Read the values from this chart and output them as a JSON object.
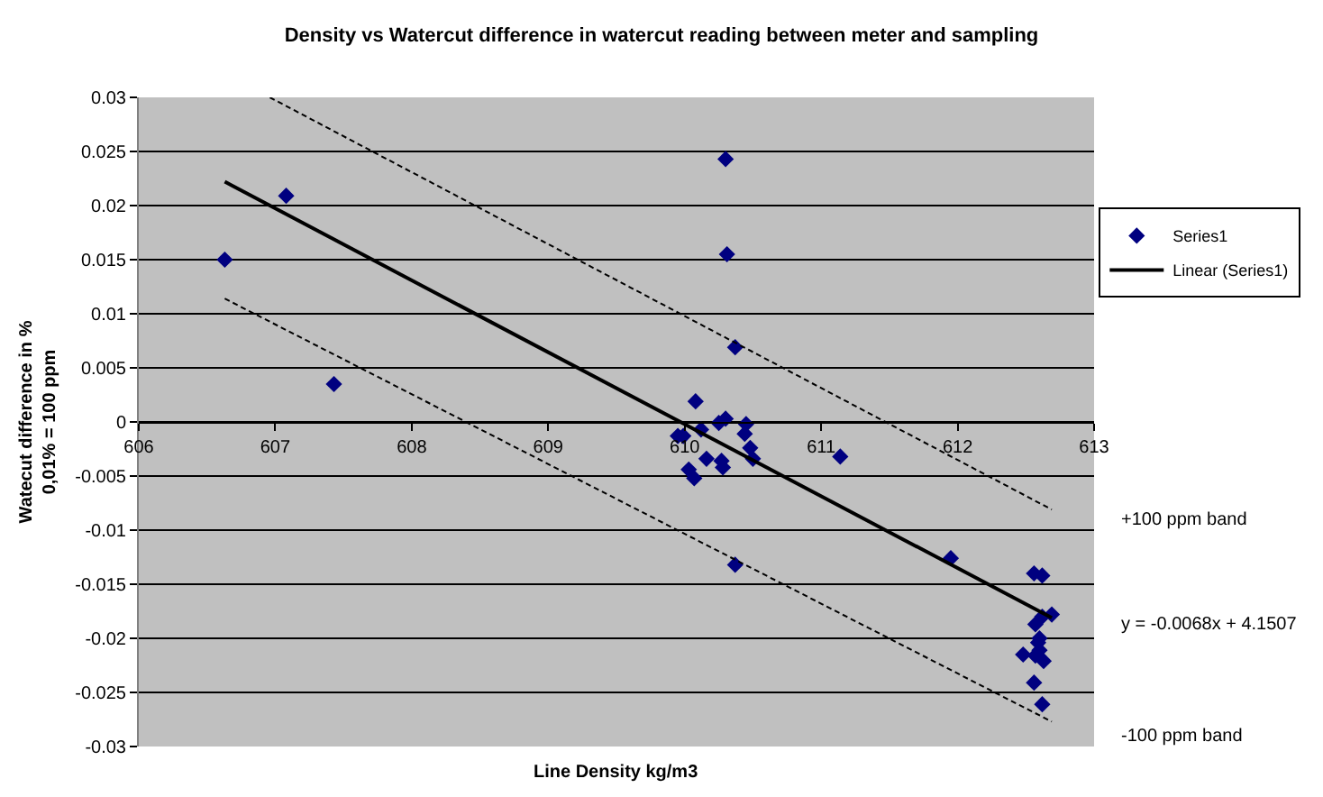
{
  "chart_data": {
    "type": "scatter",
    "title": "Density vs Watercut difference in watercut reading between meter and sampling",
    "xlabel": "Line Density kg/m3",
    "ylabel": "Watecut difference in %\n0,01% = 100 ppm",
    "xlim": [
      606,
      613
    ],
    "xticks": [
      606,
      607,
      608,
      609,
      610,
      611,
      612,
      613
    ],
    "ylim": [
      -0.03,
      0.03
    ],
    "yticks": [
      -0.03,
      -0.025,
      -0.02,
      -0.015,
      -0.01,
      -0.005,
      0,
      0.005,
      0.01,
      0.015,
      0.02,
      0.025,
      0.03
    ],
    "grid": "y",
    "legend": "right",
    "annotations": [
      "+100 ppm band",
      "y = -0.0068x + 4.1507",
      "-100 ppm band"
    ],
    "series": [
      {
        "name": "Series1",
        "color": "#000080",
        "marker": "diamond",
        "x": [
          606.63,
          607.08,
          607.43,
          610.3,
          610.31,
          610.37,
          610.08,
          609.95,
          609.99,
          610.12,
          610.25,
          610.3,
          610.45,
          610.44,
          610.48,
          610.5,
          610.16,
          610.27,
          610.28,
          610.03,
          610.07,
          611.14,
          610.37,
          611.95,
          612.56,
          612.62,
          612.69,
          612.62,
          612.57,
          612.6,
          612.59,
          612.6,
          612.48,
          612.57,
          612.63,
          612.56,
          612.62
        ],
        "values": [
          0.015,
          0.0209,
          0.0035,
          0.0243,
          0.0155,
          0.0069,
          0.0019,
          -0.0013,
          -0.0013,
          -0.0007,
          -0.0001,
          0.0003,
          -0.0002,
          -0.0011,
          -0.0024,
          -0.0034,
          -0.0034,
          -0.0036,
          -0.0042,
          -0.0044,
          -0.0052,
          -0.0032,
          -0.0132,
          -0.0126,
          -0.014,
          -0.0142,
          -0.0178,
          -0.018,
          -0.0187,
          -0.02,
          -0.0204,
          -0.0211,
          -0.0215,
          -0.0216,
          -0.0221,
          -0.0241,
          -0.0261
        ]
      },
      {
        "name": "Linear (Series1)",
        "type": "line",
        "color": "#000000",
        "line_style": "solid",
        "marker": "none",
        "x": [
          606.63,
          612.69
        ],
        "values": [
          0.0222,
          -0.0181
        ]
      },
      {
        "type": "line",
        "color": "#000000",
        "line_style": "dashed",
        "marker": "none",
        "x": [
          606.96,
          612.69
        ],
        "values": [
          0.03,
          -0.0081
        ]
      },
      {
        "type": "line",
        "color": "#000000",
        "line_style": "dashed",
        "marker": "none",
        "x": [
          606.63,
          612.69
        ],
        "values": [
          0.0114,
          -0.0277
        ]
      }
    ]
  }
}
